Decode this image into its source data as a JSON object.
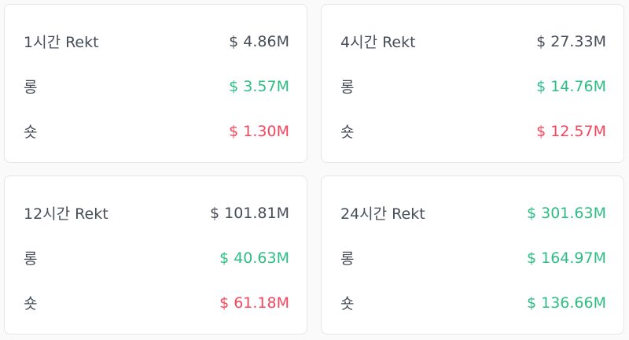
{
  "cards": [
    {
      "rows": [
        {
          "label": "1시간 Rekt",
          "value": "$ 4.86M",
          "color": "#474d57"
        },
        {
          "label": "롱",
          "value": "$ 3.57M",
          "color": "#2ebd85"
        },
        {
          "label": "숏",
          "value": "$ 1.30M",
          "color": "#f6465d"
        }
      ]
    },
    {
      "rows": [
        {
          "label": "4시간 Rekt",
          "value": "$ 27.33M",
          "color": "#474d57"
        },
        {
          "label": "롱",
          "value": "$ 14.76M",
          "color": "#2ebd85"
        },
        {
          "label": "숏",
          "value": "$ 12.57M",
          "color": "#f6465d"
        }
      ]
    },
    {
      "rows": [
        {
          "label": "12시간 Rekt",
          "value": "$ 101.81M",
          "color": "#474d57"
        },
        {
          "label": "롱",
          "value": "$ 40.63M",
          "color": "#2ebd85"
        },
        {
          "label": "숏",
          "value": "$ 61.18M",
          "color": "#f6465d"
        }
      ]
    },
    {
      "rows": [
        {
          "label": "24시간 Rekt",
          "value": "$ 301.63M",
          "color": "#2ebd85"
        },
        {
          "label": "롱",
          "value": "$ 164.97M",
          "color": "#2ebd85"
        },
        {
          "label": "숏",
          "value": "$ 136.66M",
          "color": "#2ebd85"
        }
      ]
    }
  ]
}
